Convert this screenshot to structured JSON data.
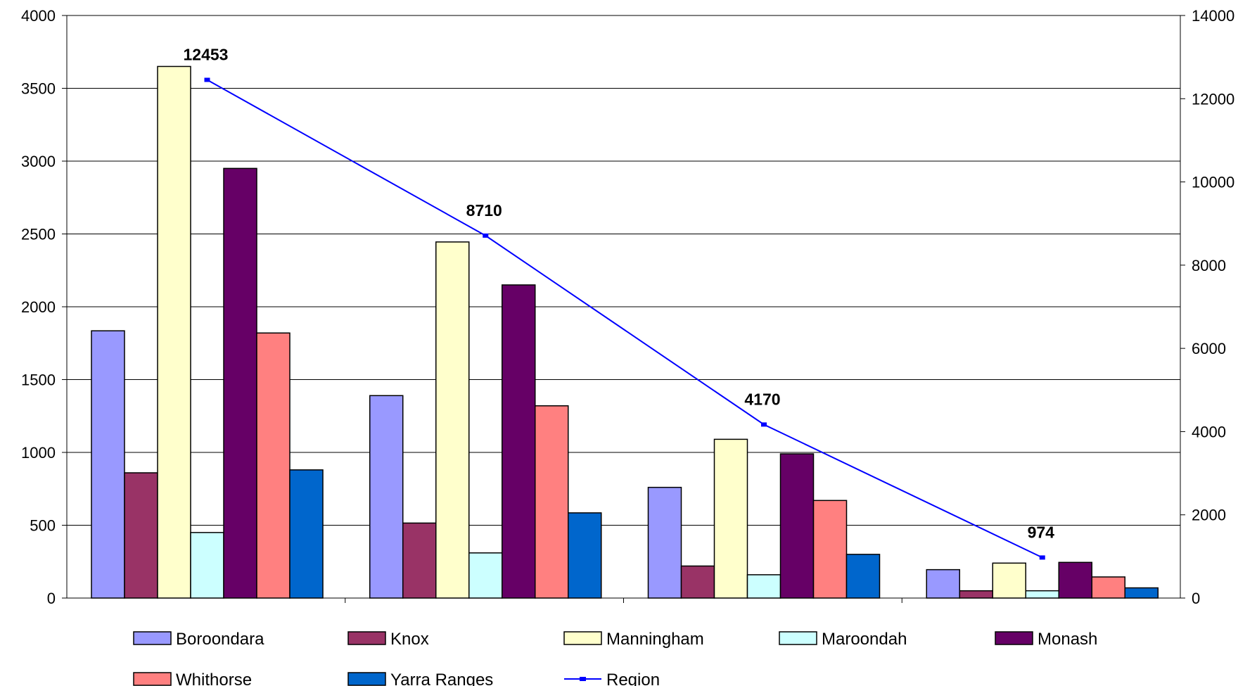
{
  "chart_data": {
    "type": "bar",
    "categories": [
      "",
      "",
      "",
      ""
    ],
    "title": "",
    "xlabel": "",
    "ylabel": "",
    "ylim": [
      0,
      4000
    ],
    "y2lim": [
      0,
      14000
    ],
    "y_ticks": [
      "0",
      "500",
      "1000",
      "1500",
      "2000",
      "2500",
      "3000",
      "3500",
      "4000"
    ],
    "y2_ticks": [
      "0",
      "2000",
      "4000",
      "6000",
      "8000",
      "10000",
      "12000",
      "14000"
    ],
    "grid": true,
    "legend_position": "bottom",
    "series": [
      {
        "name": "Boroondara",
        "type": "bar",
        "color": "#9999ff",
        "values": [
          1835,
          1390,
          760,
          195
        ]
      },
      {
        "name": "Knox",
        "type": "bar",
        "color": "#993366",
        "values": [
          860,
          515,
          220,
          50
        ]
      },
      {
        "name": "Manningham",
        "type": "bar",
        "color": "#ffffcc",
        "values": [
          3650,
          2445,
          1090,
          240
        ]
      },
      {
        "name": "Maroondah",
        "type": "bar",
        "color": "#ccffff",
        "values": [
          450,
          310,
          160,
          50
        ]
      },
      {
        "name": "Monash",
        "type": "bar",
        "color": "#660066",
        "values": [
          2950,
          2150,
          990,
          245
        ]
      },
      {
        "name": "Whithorse",
        "type": "bar",
        "color": "#ff8080",
        "values": [
          1820,
          1320,
          670,
          145
        ]
      },
      {
        "name": "Yarra Ranges",
        "type": "bar",
        "color": "#0066cc",
        "values": [
          880,
          585,
          300,
          70
        ]
      },
      {
        "name": "Region",
        "type": "line",
        "axis": "secondary",
        "color": "#0000ff",
        "values": [
          12453,
          8710,
          4170,
          974
        ],
        "data_labels": [
          "12453",
          "8710",
          "4170",
          "974"
        ]
      }
    ]
  }
}
